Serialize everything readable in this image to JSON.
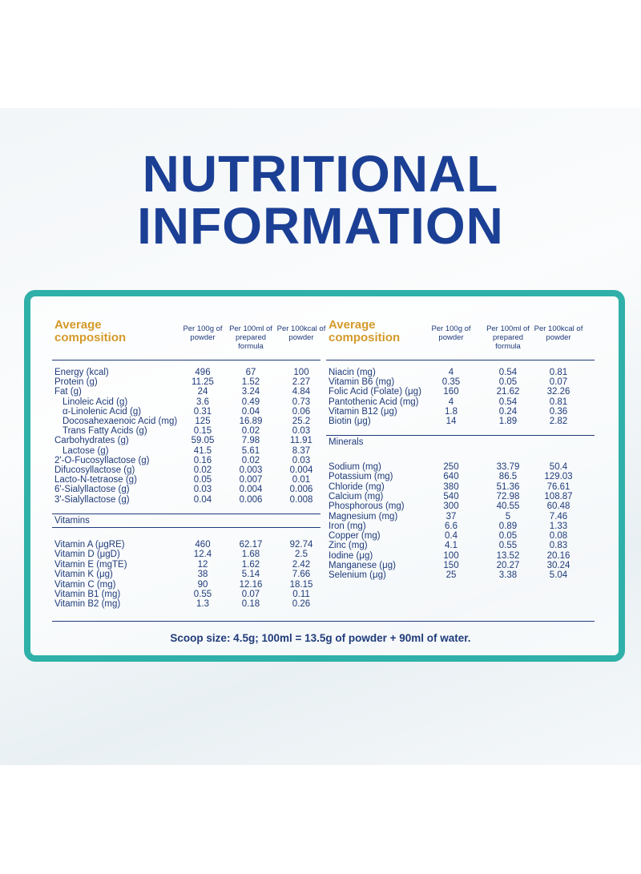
{
  "title": [
    "NUTRITIONAL",
    "INFORMATION"
  ],
  "left_table": {
    "heading": "Average composition",
    "columns": [
      "Per 100g of powder",
      "Per 100ml of prepared formula",
      "Per 100kcal of powder"
    ],
    "rows": [
      {
        "label": "Energy (kcal)",
        "values": [
          "496",
          "67",
          "100"
        ]
      },
      {
        "label": "Protein (g)",
        "values": [
          "11.25",
          "1.52",
          "2.27"
        ]
      },
      {
        "label": "Fat (g)",
        "values": [
          "24",
          "3.24",
          "4.84"
        ],
        "sub": [
          {
            "label": "Linoleic Acid (g)",
            "values": [
              "3.6",
              "0.49",
              "0.73"
            ]
          },
          {
            "label": "α-Linolenic Acid (g)",
            "values": [
              "0.31",
              "0.04",
              "0.06"
            ]
          },
          {
            "label": "Docosahexaenoic Acid (mg)",
            "values": [
              "125",
              "16.89",
              "25.2"
            ]
          },
          {
            "label": "Trans Fatty Acids (g)",
            "values": [
              "0.15",
              "0.02",
              "0.03"
            ]
          }
        ]
      },
      {
        "label": "Carbohydrates (g)",
        "values": [
          "59.05",
          "7.98",
          "11.91"
        ],
        "sub": [
          {
            "label": "Lactose (g)",
            "values": [
              "41.5",
              "5.61",
              "8.37"
            ]
          }
        ]
      },
      {
        "label": "2'-O-Fucosyllactose (g)",
        "values": [
          "0.16",
          "0.02",
          "0.03"
        ]
      },
      {
        "label": "Difucosyllactose (g)",
        "values": [
          "0.02",
          "0.003",
          "0.004"
        ]
      },
      {
        "label": "Lacto-N-tetraose (g)",
        "values": [
          "0.05",
          "0.007",
          "0.01"
        ]
      },
      {
        "label": "6'-Sialyllactose (g)",
        "values": [
          "0.03",
          "0.004",
          "0.006"
        ]
      },
      {
        "label": "3'-Sialyllactose (g)",
        "values": [
          "0.04",
          "0.006",
          "0.008"
        ]
      }
    ],
    "section": {
      "heading": "Vitamins",
      "rows": [
        {
          "label": "Vitamin A (μgRE)",
          "values": [
            "460",
            "62.17",
            "92.74"
          ]
        },
        {
          "label": "Vitamin D (μgD)",
          "values": [
            "12.4",
            "1.68",
            "2.5"
          ]
        },
        {
          "label": "Vitamin E (mgTE)",
          "values": [
            "12",
            "1.62",
            "2.42"
          ]
        },
        {
          "label": "Vitamin K (μg)",
          "values": [
            "38",
            "5.14",
            "7.66"
          ]
        },
        {
          "label": "Vitamin C (mg)",
          "values": [
            "90",
            "12.16",
            "18.15"
          ]
        },
        {
          "label": "Vitamin B1 (mg)",
          "values": [
            "0.55",
            "0.07",
            "0.11"
          ]
        },
        {
          "label": "Vitamin B2 (mg)",
          "values": [
            "1.3",
            "0.18",
            "0.26"
          ]
        }
      ]
    }
  },
  "right_table": {
    "heading": "Average composition",
    "columns": [
      "Per 100g of powder",
      "Per 100ml of prepared formula",
      "Per 100kcal of powder"
    ],
    "rows": [
      {
        "label": "Niacin (mg)",
        "values": [
          "4",
          "0.54",
          "0.81"
        ]
      },
      {
        "label": "Vitamin B6 (mg)",
        "values": [
          "0.35",
          "0.05",
          "0.07"
        ]
      },
      {
        "label": "Folic Acid (Folate) (μg)",
        "values": [
          "160",
          "21.62",
          "32.26"
        ]
      },
      {
        "label": "Pantothenic Acid (mg)",
        "values": [
          "4",
          "0.54",
          "0.81"
        ]
      },
      {
        "label": "Vitamin B12 (μg)",
        "values": [
          "1.8",
          "0.24",
          "0.36"
        ]
      },
      {
        "label": "Biotin (μg)",
        "values": [
          "14",
          "1.89",
          "2.82"
        ]
      }
    ],
    "section": {
      "heading": "Minerals",
      "rows": [
        {
          "label": "Sodium (mg)",
          "values": [
            "250",
            "33.79",
            "50.4"
          ]
        },
        {
          "label": "Potassium (mg)",
          "values": [
            "640",
            "86.5",
            "129.03"
          ]
        },
        {
          "label": "Chloride (mg)",
          "values": [
            "380",
            "51.36",
            "76.61"
          ]
        },
        {
          "label": "Calcium (mg)",
          "values": [
            "540",
            "72.98",
            "108.87"
          ]
        },
        {
          "label": "Phosphorous (mg)",
          "values": [
            "300",
            "40.55",
            "60.48"
          ]
        },
        {
          "label": "Magnesium (mg)",
          "values": [
            "37",
            "5",
            "7.46"
          ]
        },
        {
          "label": "Iron (mg)",
          "values": [
            "6.6",
            "0.89",
            "1.33"
          ]
        },
        {
          "label": "Copper (mg)",
          "values": [
            "0.4",
            "0.05",
            "0.08"
          ]
        },
        {
          "label": "Zinc (mg)",
          "values": [
            "4.1",
            "0.55",
            "0.83"
          ]
        },
        {
          "label": "Iodine (μg)",
          "values": [
            "100",
            "13.52",
            "20.16"
          ]
        },
        {
          "label": "Manganese (μg)",
          "values": [
            "150",
            "20.27",
            "30.24"
          ]
        },
        {
          "label": "Selenium (μg)",
          "values": [
            "25",
            "3.38",
            "5.04"
          ]
        }
      ]
    }
  },
  "footnote": "Scoop size: 4.5g; 100ml = 13.5g of powder + 90ml of water."
}
